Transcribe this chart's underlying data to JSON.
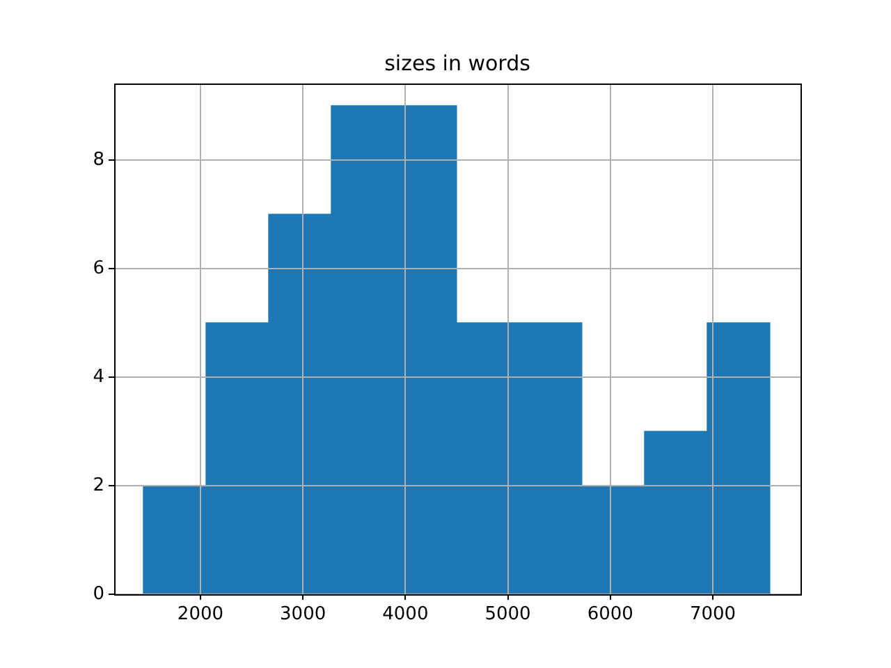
{
  "chart_data": {
    "type": "histogram",
    "title": "sizes in words",
    "bins": [
      1443,
      2054,
      2666,
      3277,
      3888,
      4500,
      5111,
      5722,
      6334,
      6945,
      7557
    ],
    "values": [
      2,
      5,
      7,
      9,
      9,
      5,
      5,
      2,
      3,
      5
    ],
    "color": "#1f77b4",
    "xlim": [
      1158,
      7856
    ],
    "xticks": [
      2000,
      3000,
      4000,
      5000,
      6000,
      7000
    ],
    "ylim": [
      0,
      9.41
    ],
    "yticks": [
      0,
      2,
      4,
      6,
      8
    ],
    "grid": true,
    "legend": false
  }
}
